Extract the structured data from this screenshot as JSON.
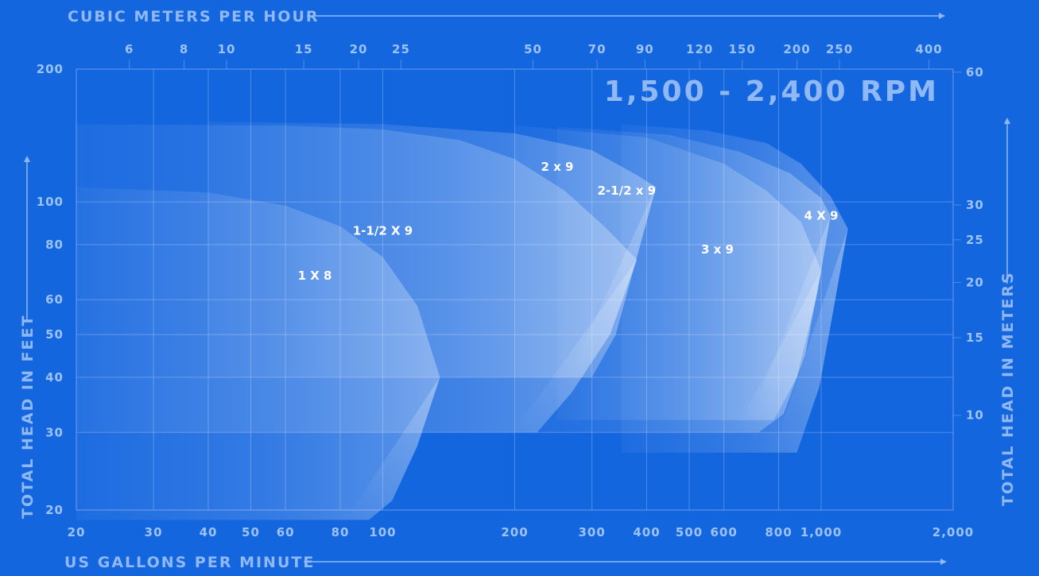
{
  "chart_data": {
    "type": "area",
    "title": "1,500 - 2,400 RPM",
    "xlabel": "US GALLONS PER MINUTE",
    "ylabel": "TOTAL HEAD IN FEET",
    "x2label": "CUBIC METERS PER HOUR",
    "y2label": "TOTAL HEAD IN METERS",
    "x_scale": "log",
    "y_scale": "log",
    "xlim": [
      20,
      2000
    ],
    "ylim": [
      20,
      200
    ],
    "x_ticks": [
      20,
      30,
      40,
      50,
      60,
      80,
      100,
      200,
      300,
      400,
      500,
      600,
      800,
      1000,
      2000
    ],
    "x_tick_labels": [
      "20",
      "30",
      "40",
      "50",
      "60",
      "80",
      "100",
      "200",
      "300",
      "400",
      "500",
      "600",
      "800",
      "1,000",
      "2,000"
    ],
    "y_ticks": [
      20,
      30,
      40,
      50,
      60,
      80,
      100,
      200
    ],
    "y_tick_labels": [
      "20",
      "30",
      "40",
      "50",
      "60",
      "80",
      "100",
      "200"
    ],
    "x2_ticks": [
      6,
      8,
      10,
      15,
      20,
      25,
      50,
      70,
      90,
      120,
      150,
      200,
      250,
      400
    ],
    "x2_tick_labels": [
      "6",
      "8",
      "10",
      "15",
      "20",
      "25",
      "50",
      "70",
      "90",
      "120",
      "150",
      "200",
      "250",
      "400"
    ],
    "y2_ticks": [
      10,
      15,
      20,
      25,
      30,
      60
    ],
    "y2_tick_labels": [
      "10",
      "15",
      "20",
      "25",
      "30",
      "60"
    ],
    "grid": true,
    "series": [
      {
        "name": "1 X 8",
        "label_at": [
          70,
          68
        ],
        "top": [
          [
            20,
            108
          ],
          [
            40,
            105
          ],
          [
            60,
            98
          ],
          [
            80,
            88
          ],
          [
            100,
            75
          ],
          [
            120,
            58
          ],
          [
            135,
            40
          ]
        ],
        "bottom": [
          [
            135,
            40
          ],
          [
            120,
            28
          ],
          [
            105,
            21
          ],
          [
            93,
            19
          ]
        ]
      },
      {
        "name": "1-1/2 X 9",
        "label_at": [
          100,
          86
        ],
        "top": [
          [
            20,
            150
          ],
          [
            60,
            149
          ],
          [
            100,
            146
          ],
          [
            150,
            138
          ],
          [
            200,
            125
          ],
          [
            260,
            106
          ],
          [
            320,
            88
          ],
          [
            380,
            74
          ]
        ],
        "bottom": [
          [
            380,
            74
          ],
          [
            330,
            50
          ],
          [
            270,
            37
          ],
          [
            225,
            30
          ]
        ]
      },
      {
        "name": "2 x 9",
        "label_at": [
          250,
          120
        ],
        "top": [
          [
            40,
            152
          ],
          [
            100,
            150
          ],
          [
            200,
            143
          ],
          [
            300,
            131
          ],
          [
            380,
            115
          ],
          [
            420,
            108
          ]
        ],
        "bottom": [
          [
            420,
            108
          ],
          [
            380,
            75
          ],
          [
            340,
            50
          ],
          [
            300,
            40
          ]
        ]
      },
      {
        "name": "2-1/2 x 9",
        "label_at": [
          360,
          106
        ],
        "top": [
          [
            200,
            149
          ],
          [
            400,
            140
          ],
          [
            600,
            122
          ],
          [
            750,
            106
          ],
          [
            900,
            90
          ],
          [
            1000,
            70
          ]
        ],
        "bottom": [
          [
            1000,
            70
          ],
          [
            920,
            45
          ],
          [
            820,
            33
          ],
          [
            720,
            30
          ]
        ]
      },
      {
        "name": "3 x 9",
        "label_at": [
          580,
          78
        ],
        "top": [
          [
            250,
            148
          ],
          [
            450,
            142
          ],
          [
            650,
            130
          ],
          [
            850,
            116
          ],
          [
            1000,
            102
          ],
          [
            1050,
            93
          ]
        ],
        "bottom": [
          [
            1050,
            93
          ],
          [
            980,
            62
          ],
          [
            880,
            40
          ],
          [
            780,
            32
          ]
        ]
      },
      {
        "name": "4 X 9",
        "label_at": [
          1000,
          93
        ],
        "top": [
          [
            350,
            150
          ],
          [
            550,
            145
          ],
          [
            750,
            136
          ],
          [
            900,
            122
          ],
          [
            1050,
            103
          ],
          [
            1150,
            87
          ]
        ],
        "bottom": [
          [
            1150,
            87
          ],
          [
            1060,
            55
          ],
          [
            990,
            38
          ],
          [
            880,
            27
          ]
        ]
      }
    ]
  },
  "colors": {
    "background": "#1466df",
    "grid": "#7fa9ee",
    "text": "#8fb8f5",
    "curve_fill": "#bcd6fb",
    "label": "#ffffff"
  }
}
